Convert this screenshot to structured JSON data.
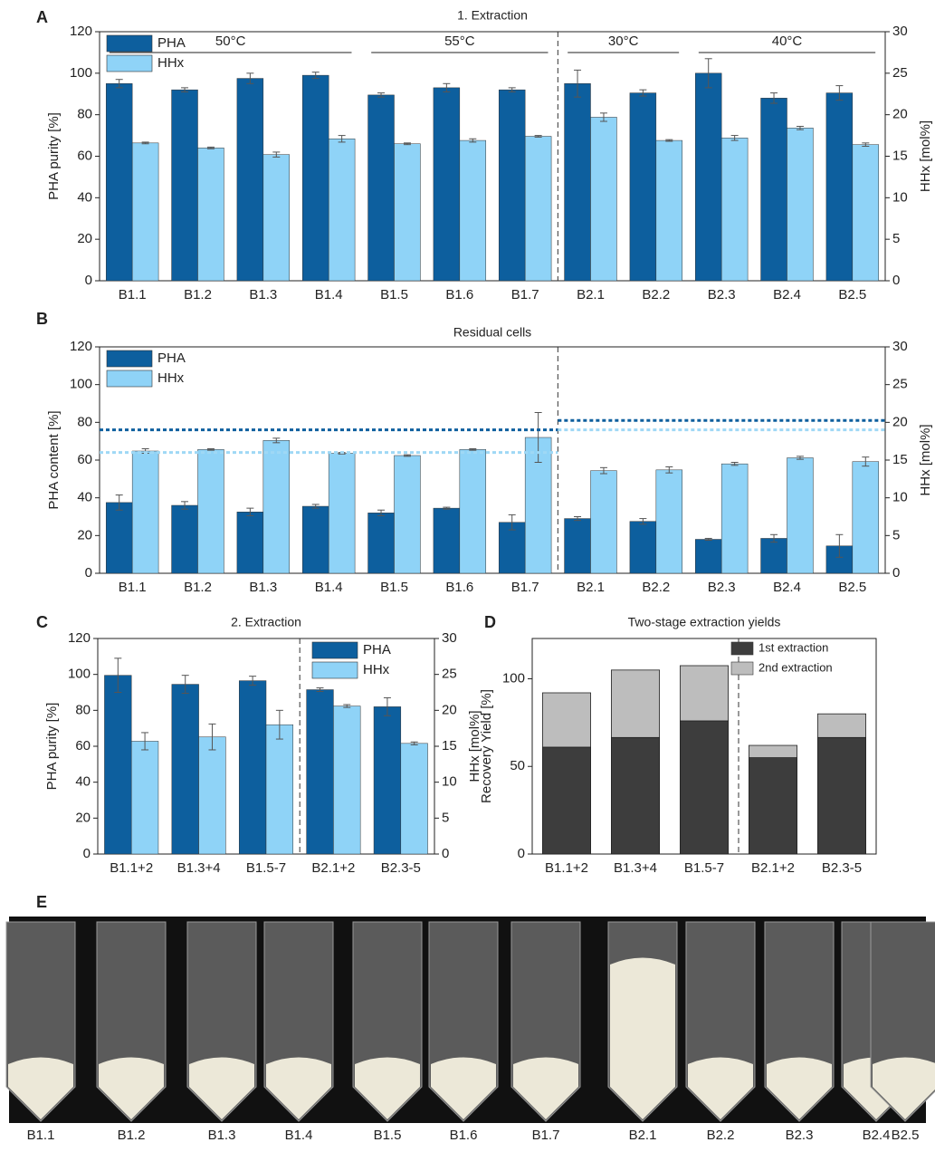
{
  "chart_data": [
    {
      "type": "bar",
      "panel": "A",
      "title": "1. Extraction",
      "y_label": "PHA purity [%]",
      "y2_label": "HHx [mol%]",
      "categories": [
        "B1.1",
        "B1.2",
        "B1.3",
        "B1.4",
        "B1.5",
        "B1.6",
        "B1.7",
        "B2.1",
        "B2.2",
        "B2.3",
        "B2.4",
        "B2.5"
      ],
      "series": [
        {
          "name": "PHA",
          "color": "#0d5f9e",
          "values": [
            95,
            92,
            97.5,
            99,
            89.5,
            93,
            92,
            95,
            90.5,
            100,
            88,
            90.5
          ],
          "errors": [
            2,
            1,
            2.5,
            1.5,
            1,
            2,
            1,
            6.5,
            1.5,
            7,
            2.5,
            3.5
          ]
        },
        {
          "name": "HHx",
          "color": "#8fd3f7",
          "axis": "y2",
          "values": [
            16.6,
            16,
            15.2,
            17.1,
            16.5,
            16.9,
            17.4,
            19.7,
            16.9,
            17.2,
            18.4,
            16.4
          ],
          "errors": [
            0.1,
            0.1,
            0.3,
            0.4,
            0.1,
            0.2,
            0.1,
            0.5,
            0.1,
            0.3,
            0.2,
            0.2
          ]
        }
      ],
      "ylim": [
        0,
        120
      ],
      "yticks": [
        0,
        20,
        40,
        60,
        80,
        100,
        120
      ],
      "y2lim": [
        0,
        30
      ],
      "y2ticks": [
        0,
        5,
        10,
        15,
        20,
        25,
        30
      ],
      "legend": "upper left",
      "divider_after": 6,
      "groups": [
        {
          "label": "50°C",
          "start": 0,
          "end": 3
        },
        {
          "label": "55°C",
          "start": 4,
          "end": 6
        },
        {
          "label": "30°C",
          "start": 7,
          "end": 8
        },
        {
          "label": "40°C",
          "start": 9,
          "end": 11
        }
      ]
    },
    {
      "type": "bar",
      "panel": "B",
      "title": "Residual cells",
      "y_label": "PHA content [%]",
      "y2_label": "HHx [mol%]",
      "categories": [
        "B1.1",
        "B1.2",
        "B1.3",
        "B1.4",
        "B1.5",
        "B1.6",
        "B1.7",
        "B2.1",
        "B2.2",
        "B2.3",
        "B2.4",
        "B2.5"
      ],
      "series": [
        {
          "name": "PHA",
          "color": "#0d5f9e",
          "values": [
            37.5,
            36,
            32.5,
            35.5,
            32,
            34.5,
            27,
            29,
            27.5,
            18,
            18.5,
            14.5
          ],
          "errors": [
            4,
            2,
            2,
            1,
            1.5,
            0.5,
            4,
            1,
            1.5,
            0.5,
            2,
            6
          ]
        },
        {
          "name": "HHx",
          "color": "#8fd3f7",
          "axis": "y2",
          "values": [
            16.2,
            16.4,
            17.6,
            15.9,
            15.6,
            16.4,
            18,
            13.6,
            13.7,
            14.5,
            15.3,
            14.8
          ],
          "errors": [
            0.3,
            0.1,
            0.3,
            0.1,
            0.1,
            0.1,
            3.3,
            0.4,
            0.4,
            0.2,
            0.2,
            0.6
          ]
        }
      ],
      "ylim": [
        0,
        120
      ],
      "yticks": [
        0,
        20,
        40,
        60,
        80,
        100,
        120
      ],
      "y2lim": [
        0,
        30
      ],
      "y2ticks": [
        0,
        5,
        10,
        15,
        20,
        25,
        30
      ],
      "legend": "upper left",
      "divider_after": 6,
      "ref_lines": [
        {
          "axis": "y",
          "color": "#0d5f9e",
          "values": [
            76,
            81
          ]
        },
        {
          "axis": "y2",
          "color": "#9fd8f5",
          "values": [
            16,
            19
          ]
        }
      ]
    },
    {
      "type": "bar",
      "panel": "C",
      "title": "2. Extraction",
      "y_label": "PHA purity [%]",
      "y2_label": "HHx [mol%]",
      "categories": [
        "B1.1+2",
        "B1.3+4",
        "B1.5-7",
        "B2.1+2",
        "B2.3-5"
      ],
      "series": [
        {
          "name": "PHA",
          "color": "#0d5f9e",
          "values": [
            99.5,
            94.5,
            96.5,
            91.5,
            82
          ],
          "errors": [
            9.5,
            5,
            2.5,
            1,
            5
          ]
        },
        {
          "name": "HHx",
          "color": "#8fd3f7",
          "axis": "y2",
          "values": [
            15.7,
            16.3,
            18,
            20.6,
            15.4
          ],
          "errors": [
            1.2,
            1.8,
            2,
            0.2,
            0.2
          ]
        }
      ],
      "ylim": [
        0,
        120
      ],
      "yticks": [
        0,
        20,
        40,
        60,
        80,
        100,
        120
      ],
      "y2lim": [
        0,
        30
      ],
      "y2ticks": [
        0,
        5,
        10,
        15,
        20,
        25,
        30
      ],
      "legend": "upper right",
      "divider_after": 2
    },
    {
      "type": "stacked_bar",
      "panel": "D",
      "title": "Two-stage extraction yields",
      "y_label": "Recovery Yield [%]",
      "categories": [
        "B1.1+2",
        "B1.3+4",
        "B1.5-7",
        "B2.1+2",
        "B2.3-5"
      ],
      "series": [
        {
          "name": "1st extraction",
          "color": "#3d3d3d",
          "values": [
            61,
            66.5,
            76,
            55,
            66.5
          ]
        },
        {
          "name": "2nd extraction",
          "color": "#bdbdbd",
          "values": [
            31,
            38.5,
            31.5,
            7,
            13.5
          ]
        }
      ],
      "ylim": [
        0,
        123
      ],
      "yticks": [
        0,
        50,
        100
      ],
      "legend": "upper right",
      "divider_after": 2
    }
  ],
  "photo": {
    "panel": "E",
    "labels": [
      "B1.1",
      "B1.2",
      "B1.3",
      "B1.4",
      "B1.5",
      "B1.6",
      "B1.7",
      "B2.1",
      "B2.2",
      "B2.3",
      "B2.4",
      "B2.5"
    ]
  }
}
